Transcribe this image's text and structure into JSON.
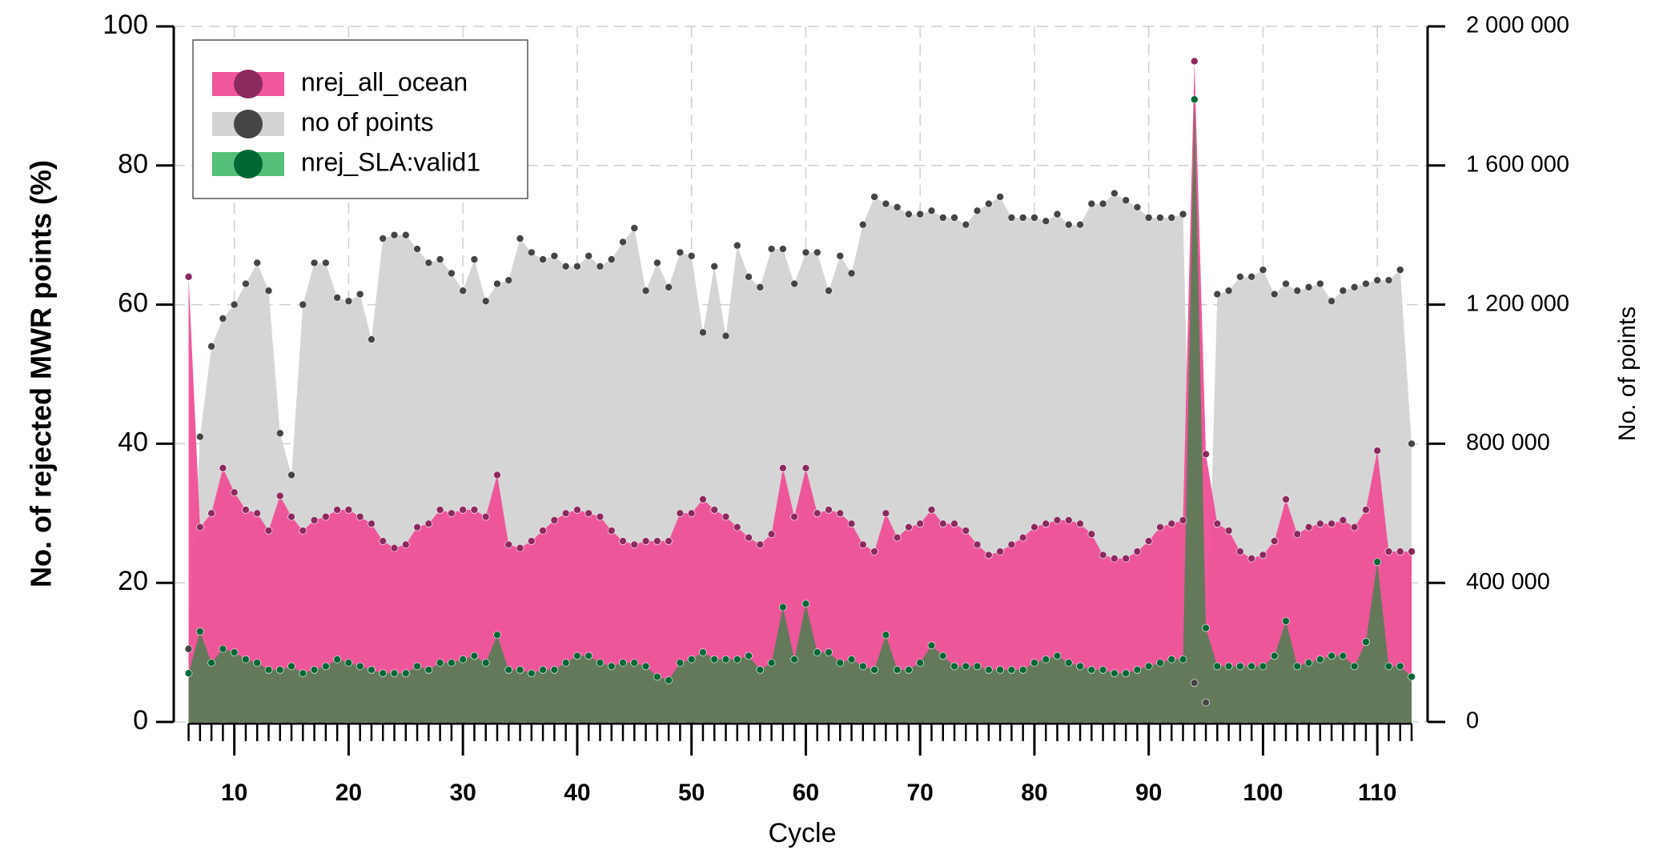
{
  "chart_data": {
    "type": "area",
    "x_label": "Cycle",
    "y_label": "No. of rejected MWR points (%)",
    "y2_label": "No. of points",
    "x": [
      6,
      7,
      8,
      9,
      10,
      11,
      12,
      13,
      14,
      15,
      16,
      17,
      18,
      19,
      20,
      21,
      22,
      23,
      24,
      25,
      26,
      27,
      28,
      29,
      30,
      31,
      32,
      33,
      34,
      35,
      36,
      37,
      38,
      39,
      40,
      41,
      42,
      43,
      44,
      45,
      46,
      47,
      48,
      49,
      50,
      51,
      52,
      53,
      54,
      55,
      56,
      57,
      58,
      59,
      60,
      61,
      62,
      63,
      64,
      65,
      66,
      67,
      68,
      69,
      70,
      71,
      72,
      73,
      74,
      75,
      76,
      77,
      78,
      79,
      80,
      81,
      82,
      83,
      84,
      85,
      86,
      87,
      88,
      89,
      90,
      91,
      92,
      93,
      94,
      95,
      96,
      97,
      98,
      99,
      100,
      101,
      102,
      103,
      104,
      105,
      106,
      107,
      108,
      109,
      110,
      111,
      112,
      113
    ],
    "series": [
      {
        "name": "no of points",
        "axis": "y2",
        "color": "#d3d3d3",
        "marker_color": "#454545",
        "values": [
          210000,
          820000,
          1080000,
          1160000,
          1200000,
          1260000,
          1320000,
          1240000,
          830000,
          710000,
          1200000,
          1320000,
          1320000,
          1220000,
          1210000,
          1230000,
          1100000,
          1390000,
          1400000,
          1400000,
          1360000,
          1320000,
          1330000,
          1290000,
          1240000,
          1330000,
          1210000,
          1260000,
          1270000,
          1390000,
          1350000,
          1330000,
          1340000,
          1310000,
          1310000,
          1340000,
          1310000,
          1330000,
          1380000,
          1420000,
          1240000,
          1320000,
          1250000,
          1350000,
          1340000,
          1120000,
          1310000,
          1110000,
          1370000,
          1280000,
          1250000,
          1360000,
          1360000,
          1260000,
          1350000,
          1350000,
          1240000,
          1340000,
          1290000,
          1430000,
          1510000,
          1490000,
          1480000,
          1460000,
          1460000,
          1470000,
          1450000,
          1450000,
          1430000,
          1470000,
          1490000,
          1510000,
          1450000,
          1450000,
          1450000,
          1440000,
          1460000,
          1430000,
          1430000,
          1490000,
          1490000,
          1520000,
          1500000,
          1480000,
          1450000,
          1450000,
          1450000,
          1460000,
          112000,
          56000,
          1230000,
          1240000,
          1280000,
          1280000,
          1300000,
          1230000,
          1260000,
          1240000,
          1250000,
          1260000,
          1210000,
          1240000,
          1250000,
          1260000,
          1270000,
          1270000,
          1300000,
          800000
        ]
      },
      {
        "name": "nrej_all_ocean",
        "color": "#ef4f97",
        "marker_color": "#8c2a5f",
        "values": [
          64,
          28,
          30,
          36.5,
          33,
          30.5,
          30,
          27.5,
          32.5,
          29.5,
          27.5,
          29,
          29.5,
          30.5,
          30.5,
          29.5,
          28.5,
          26,
          25,
          25.5,
          28,
          28.5,
          30.5,
          30,
          30.5,
          30.5,
          29.5,
          35.5,
          25.5,
          25,
          26,
          27.5,
          29,
          30,
          30.5,
          30,
          29.5,
          27.5,
          26,
          25.5,
          26,
          26,
          26,
          30,
          30,
          32,
          30.5,
          29.5,
          28,
          26.5,
          25.5,
          27,
          36.5,
          29.5,
          36.5,
          30,
          30.5,
          30,
          28.5,
          25.5,
          24.5,
          30,
          26.5,
          28,
          28.5,
          30.5,
          28.5,
          28.5,
          27.5,
          25.5,
          24,
          24.5,
          25.5,
          26.5,
          28,
          28.5,
          29,
          29,
          28.5,
          27,
          24,
          23.5,
          23.5,
          24.5,
          26,
          28,
          28.5,
          29,
          95,
          38.5,
          28.5,
          27.5,
          24.5,
          23.5,
          24,
          26,
          32,
          27,
          28,
          28.5,
          28.5,
          29,
          28,
          30.5,
          39,
          24.5,
          24.5,
          24.5
        ]
      },
      {
        "name": "nrej_SLA:valid1",
        "color": "#5c7b55",
        "marker_color": "#006834",
        "values": [
          7,
          13,
          8.5,
          10.5,
          10,
          9,
          8.5,
          7.5,
          7.5,
          8,
          7,
          7.5,
          8,
          9,
          8.5,
          8,
          7.5,
          7,
          7,
          7,
          8,
          7.5,
          8.5,
          8.5,
          9,
          9.5,
          8.5,
          12.5,
          7.5,
          7.5,
          7,
          7.5,
          7.5,
          8.5,
          9.5,
          9.5,
          8.5,
          8,
          8.5,
          8.5,
          8,
          6.5,
          6,
          8.5,
          9,
          10,
          9,
          9,
          9,
          9.5,
          7.5,
          8.5,
          16.5,
          9,
          17,
          10,
          10,
          8.5,
          9,
          8,
          7.5,
          12.5,
          7.5,
          7.5,
          8.5,
          11,
          9.5,
          8,
          8,
          8,
          7.5,
          7.5,
          7.5,
          7.5,
          8.5,
          9,
          9.5,
          8.5,
          8,
          7.5,
          7.5,
          7,
          7,
          7.5,
          8,
          8.5,
          9,
          9,
          89.5,
          13.5,
          8,
          8,
          8,
          8,
          8,
          9.5,
          14.5,
          8,
          8.5,
          9,
          9.5,
          9.5,
          8,
          11.5,
          23,
          8,
          8,
          6.5
        ]
      }
    ],
    "legend_colors": [
      "#f0579c",
      "#d3d3d3",
      "#55c07a"
    ],
    "legend_order": [
      1,
      0,
      2
    ],
    "xlim": [
      4.7,
      114.4
    ],
    "xticks": [
      10,
      20,
      30,
      40,
      50,
      60,
      70,
      80,
      90,
      100,
      110
    ],
    "ylim": [
      0,
      100
    ],
    "yticks": [
      0,
      20,
      40,
      60,
      80,
      100
    ],
    "y2lim": [
      0,
      2000000
    ],
    "y2ticks": [
      0,
      {
        "value": 400000,
        "label": "400 000"
      },
      {
        "value": 800000,
        "label": "800 000"
      },
      {
        "value": 1200000,
        "label": "1 200 000"
      },
      {
        "value": 1600000,
        "label": "1 600 000"
      },
      {
        "value": 2000000,
        "label": "2 000 000"
      }
    ],
    "grid": true,
    "legend": "upper left"
  }
}
